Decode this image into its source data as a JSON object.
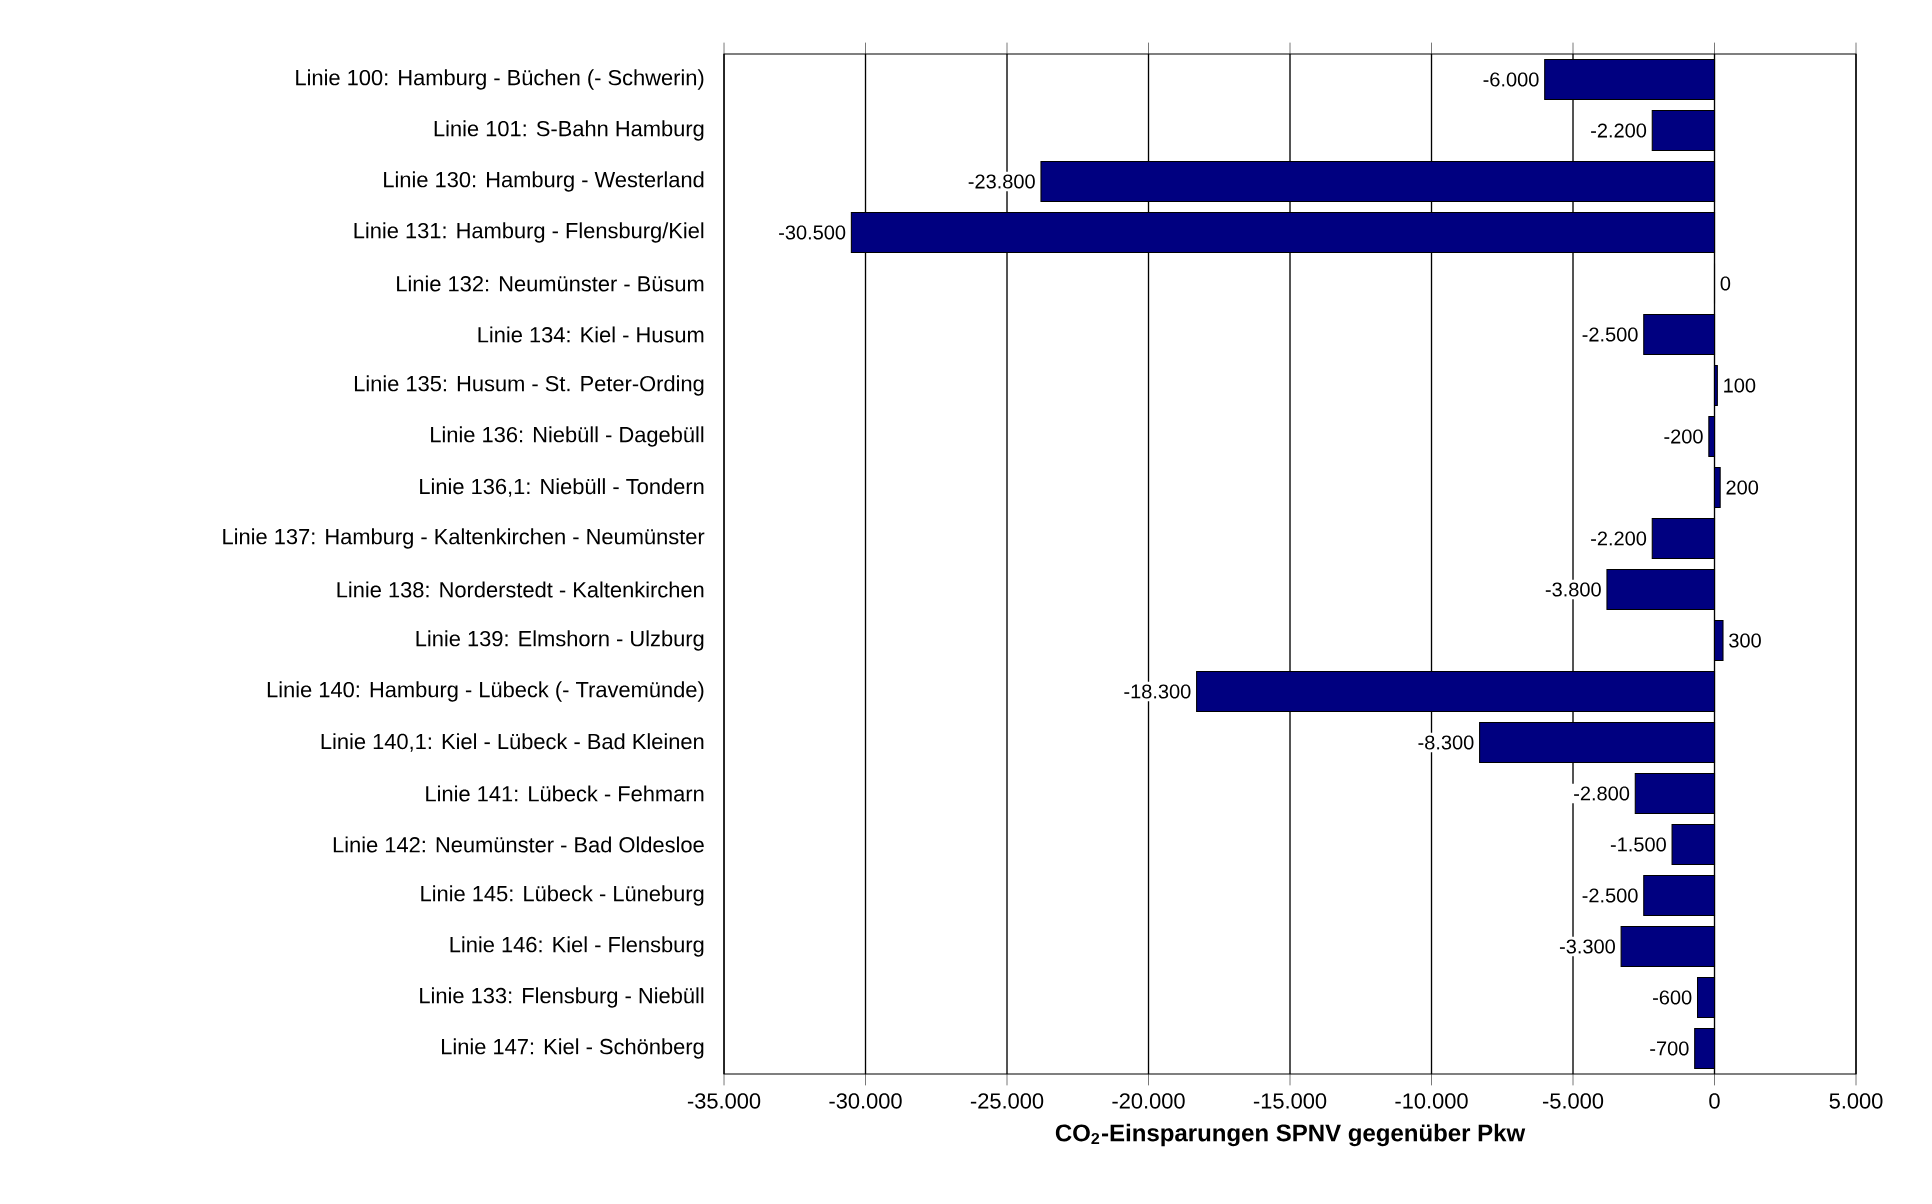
{
  "chart_data": {
    "type": "bar",
    "orientation": "horizontal",
    "xlabel": "CO$_{2}$-Einsparungen SPNV gegenüber Pkw",
    "categories": [
      "Linie 100: Hamburg - Büchen (- Schwerin)",
      "Linie 101: S-Bahn Hamburg",
      "Linie 130: Hamburg - Westerland",
      "Linie 131: Hamburg - Flensburg/Kiel",
      "Linie 132: Neumünster - Büsum",
      "Linie 134: Kiel - Husum",
      "Linie 135: Husum - St. Peter-Ording",
      "Linie 136: Niebüll - Dagebüll",
      "Linie 136,1: Niebüll - Tondern",
      "Linie 137: Hamburg - Kaltenkirchen - Neumünster",
      "Linie 138: Norderstedt - Kaltenkirchen",
      "Linie 139: Elmshorn - Ulzburg",
      "Linie 140: Hamburg - Lübeck (- Travemünde)",
      "Linie 140,1: Kiel - Lübeck - Bad Kleinen",
      "Linie 141: Lübeck - Fehmarn",
      "Linie 142: Neumünster - Bad Oldesloe",
      "Linie 145: Lübeck - Lüneburg",
      "Linie 146: Kiel - Flensburg",
      "Linie 133: Flensburg - Niebüll",
      "Linie 147: Kiel - Schönberg"
    ],
    "values": [
      -6000,
      -2200,
      -23800,
      -30500,
      0,
      -2500,
      100,
      -200,
      200,
      -2200,
      -3800,
      300,
      -18300,
      -8300,
      -2800,
      -1500,
      -2500,
      -3300,
      -600,
      -700
    ],
    "value_labels": [
      "-6.000",
      "-2.200",
      "-23.800",
      "-30.500",
      "0",
      "-2.500",
      "100",
      "-200",
      "200",
      "-2.200",
      "-3.800",
      "300",
      "-18.300",
      "-8.300",
      "-2.800",
      "-1.500",
      "-2.500",
      "-3.300",
      "-600",
      "-700"
    ],
    "color": "#000080",
    "xlim": [
      -35000,
      5000
    ],
    "xticks": [
      {
        "value": -35000,
        "label": "-35.000"
      },
      {
        "value": -30000,
        "label": "-30.000"
      },
      {
        "value": -25000,
        "label": "-25.000"
      },
      {
        "value": -20000,
        "label": "-20.000"
      },
      {
        "value": -15000,
        "label": "-15.000"
      },
      {
        "value": -10000,
        "label": "-10.000"
      },
      {
        "value": -5000,
        "label": "-5.000"
      },
      {
        "value": 0,
        "label": "0"
      },
      {
        "value": 5000,
        "label": "5.000"
      }
    ],
    "grid": "x"
  }
}
